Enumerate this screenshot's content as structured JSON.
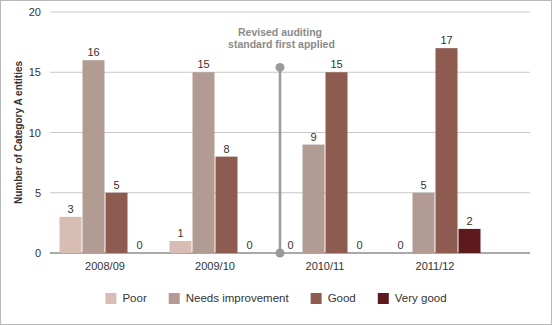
{
  "chart_data": {
    "type": "bar",
    "y_label": "Number of Category A entities",
    "annotation": "Revised auditing standard first applied",
    "categories": [
      "2008/09",
      "2009/10",
      "2010/11",
      "2011/12"
    ],
    "series": [
      {
        "name": "Poor",
        "color": "#d8bdb5",
        "values": [
          3,
          1,
          0,
          0
        ]
      },
      {
        "name": "Needs improvement",
        "color": "#b29b92",
        "values": [
          16,
          15,
          9,
          5
        ]
      },
      {
        "name": "Good",
        "color": "#8e5b50",
        "values": [
          5,
          8,
          15,
          17
        ]
      },
      {
        "name": "Very good",
        "color": "#5c1a1c",
        "values": [
          0,
          0,
          0,
          2
        ]
      }
    ],
    "ylim": [
      0,
      20
    ],
    "yticks": [
      0,
      5,
      10,
      15,
      20
    ],
    "grid": true,
    "data_labels": true,
    "legend": "bottom"
  }
}
